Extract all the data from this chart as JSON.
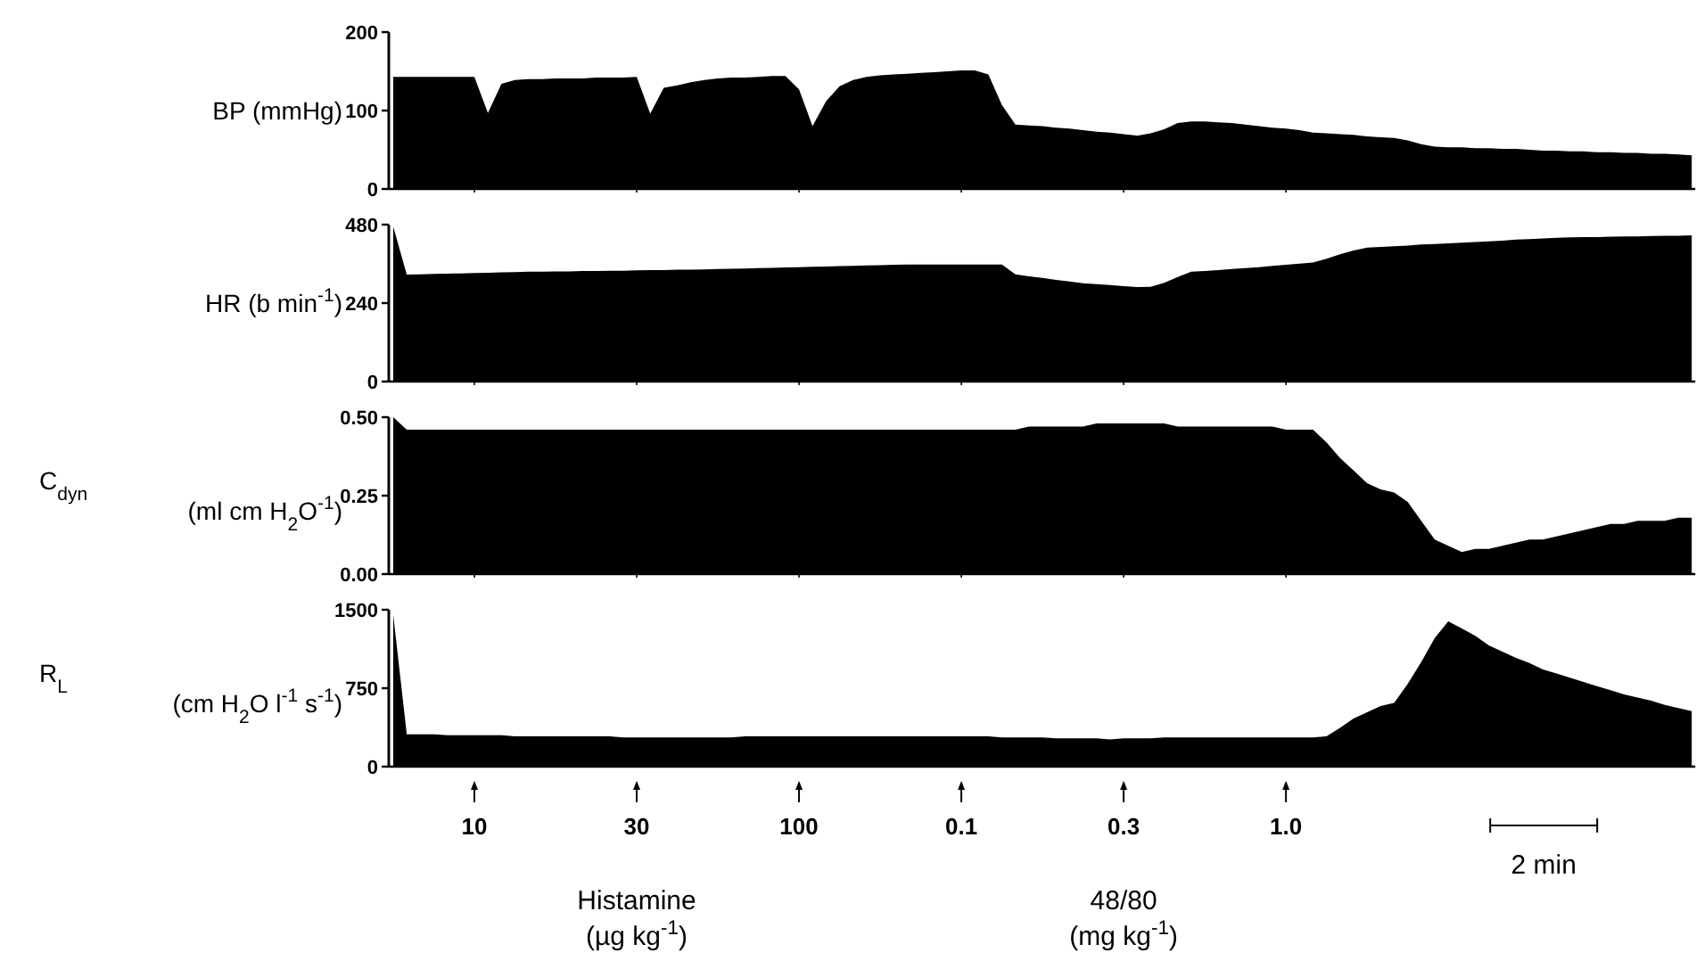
{
  "chart_data": [
    {
      "type": "area",
      "ylabel": "BP (mmHg)",
      "color": "#000000",
      "ylim": [
        0,
        200
      ],
      "yticks": [
        0,
        100,
        200
      ],
      "tick_labels": "y",
      "categories": [
        null,
        null,
        null,
        null,
        null,
        null,
        "10",
        null,
        null,
        null,
        null,
        null,
        null,
        null,
        null,
        null,
        null,
        null,
        "30",
        null,
        null,
        null,
        null,
        null,
        null,
        null,
        null,
        null,
        null,
        null,
        "100",
        null,
        null,
        null,
        null,
        null,
        null,
        null,
        null,
        null,
        null,
        null,
        "0.1",
        null,
        null,
        null,
        null,
        null,
        null,
        null,
        null,
        null,
        null,
        null,
        "0.3",
        null,
        null,
        null,
        null,
        null,
        null,
        null,
        null,
        null,
        null,
        null,
        "1.0",
        null,
        null,
        null,
        null,
        null,
        null,
        null,
        null,
        null,
        null,
        null,
        null,
        null,
        null,
        null,
        null,
        null,
        null,
        null,
        null,
        null,
        null,
        null,
        null,
        null,
        null,
        null,
        null,
        null,
        null
      ],
      "values": [
        143,
        143,
        143,
        143,
        143,
        143,
        143,
        97,
        134,
        139,
        140,
        140,
        141,
        141,
        141,
        142,
        142,
        142,
        143,
        96,
        129,
        132,
        136,
        139,
        141,
        142,
        142,
        143,
        144,
        144,
        127,
        80,
        112,
        131,
        139,
        143,
        145,
        146,
        147,
        148,
        149,
        150,
        151,
        151,
        146,
        107,
        82,
        81,
        80,
        78,
        77,
        75,
        73,
        72,
        70,
        68,
        71,
        76,
        84,
        86,
        86,
        85,
        84,
        82,
        80,
        78,
        77,
        75,
        72,
        71,
        70,
        69,
        67,
        66,
        65,
        62,
        57,
        54,
        53,
        53,
        52,
        52,
        51,
        51,
        50,
        49,
        49,
        48,
        48,
        47,
        47,
        46,
        46,
        45,
        45,
        44,
        43
      ]
    },
    {
      "type": "area",
      "ylabel": "HR (b min$^{-1}$)",
      "color": "#000000",
      "ylim": [
        0,
        480
      ],
      "yticks": [
        0,
        240,
        480
      ],
      "tick_labels": "y",
      "categories": [
        null,
        null,
        null,
        null,
        null,
        null,
        "10",
        null,
        null,
        null,
        null,
        null,
        null,
        null,
        null,
        null,
        null,
        null,
        "30",
        null,
        null,
        null,
        null,
        null,
        null,
        null,
        null,
        null,
        null,
        null,
        "100",
        null,
        null,
        null,
        null,
        null,
        null,
        null,
        null,
        null,
        null,
        null,
        "0.1",
        null,
        null,
        null,
        null,
        null,
        null,
        null,
        null,
        null,
        null,
        null,
        "0.3",
        null,
        null,
        null,
        null,
        null,
        null,
        null,
        null,
        null,
        null,
        null,
        "1.0",
        null,
        null,
        null,
        null,
        null,
        null,
        null,
        null,
        null,
        null,
        null,
        null,
        null,
        null,
        null,
        null,
        null,
        null,
        null,
        null,
        null,
        null,
        null,
        null,
        null,
        null,
        null,
        null,
        null,
        null
      ],
      "values": [
        474,
        327,
        328,
        329,
        330,
        331,
        332,
        333,
        334,
        335,
        336,
        336,
        337,
        337,
        338,
        338,
        339,
        339,
        340,
        341,
        341,
        342,
        342,
        343,
        344,
        345,
        346,
        347,
        348,
        349,
        350,
        351,
        352,
        353,
        354,
        355,
        356,
        357,
        358,
        358,
        358,
        358,
        358,
        358,
        358,
        358,
        328,
        322,
        317,
        311,
        306,
        301,
        298,
        295,
        292,
        289,
        290,
        302,
        320,
        336,
        338,
        341,
        344,
        347,
        350,
        354,
        357,
        361,
        364,
        376,
        389,
        401,
        410,
        412,
        414,
        416,
        419,
        421,
        423,
        425,
        427,
        429,
        431,
        434,
        436,
        438,
        440,
        441,
        442,
        442,
        443,
        444,
        444,
        445,
        446,
        446,
        447
      ]
    },
    {
      "type": "area",
      "ylabel": "C$_{dyn}$ (ml cm H$_{2}$O$^{-1}$)",
      "color": "#000000",
      "ylim": [
        0,
        0.5
      ],
      "yticks": [
        {
          "value": 0,
          "label": "0.00"
        },
        {
          "value": 0.25,
          "label": "0.25"
        },
        {
          "value": 0.5,
          "label": "0.50"
        }
      ],
      "tick_labels": "y",
      "categories": [
        null,
        null,
        null,
        null,
        null,
        null,
        "10",
        null,
        null,
        null,
        null,
        null,
        null,
        null,
        null,
        null,
        null,
        null,
        "30",
        null,
        null,
        null,
        null,
        null,
        null,
        null,
        null,
        null,
        null,
        null,
        "100",
        null,
        null,
        null,
        null,
        null,
        null,
        null,
        null,
        null,
        null,
        null,
        "0.1",
        null,
        null,
        null,
        null,
        null,
        null,
        null,
        null,
        null,
        null,
        null,
        "0.3",
        null,
        null,
        null,
        null,
        null,
        null,
        null,
        null,
        null,
        null,
        null,
        "1.0",
        null,
        null,
        null,
        null,
        null,
        null,
        null,
        null,
        null,
        null,
        null,
        null,
        null,
        null,
        null,
        null,
        null,
        null,
        null,
        null,
        null,
        null,
        null,
        null,
        null,
        null,
        null,
        null,
        null,
        null
      ],
      "values": [
        0.5,
        0.46,
        0.46,
        0.46,
        0.46,
        0.46,
        0.46,
        0.46,
        0.46,
        0.46,
        0.46,
        0.46,
        0.46,
        0.46,
        0.46,
        0.46,
        0.46,
        0.46,
        0.46,
        0.46,
        0.46,
        0.46,
        0.46,
        0.46,
        0.46,
        0.46,
        0.46,
        0.46,
        0.46,
        0.46,
        0.46,
        0.46,
        0.46,
        0.46,
        0.46,
        0.46,
        0.46,
        0.46,
        0.46,
        0.46,
        0.46,
        0.46,
        0.46,
        0.46,
        0.46,
        0.46,
        0.46,
        0.47,
        0.47,
        0.47,
        0.47,
        0.47,
        0.48,
        0.48,
        0.48,
        0.48,
        0.48,
        0.48,
        0.47,
        0.47,
        0.47,
        0.47,
        0.47,
        0.47,
        0.47,
        0.47,
        0.46,
        0.46,
        0.46,
        0.42,
        0.37,
        0.33,
        0.29,
        0.27,
        0.26,
        0.23,
        0.17,
        0.11,
        0.09,
        0.07,
        0.08,
        0.08,
        0.09,
        0.1,
        0.11,
        0.11,
        0.12,
        0.13,
        0.14,
        0.15,
        0.16,
        0.16,
        0.17,
        0.17,
        0.17,
        0.18,
        0.18
      ]
    },
    {
      "type": "area",
      "ylabel": "R$_{L}$ (cm H$_{2}$O l$^{-1}$ s$^{-1}$)",
      "color": "#000000",
      "ylim": [
        0,
        1500
      ],
      "yticks": [
        0,
        750,
        1500
      ],
      "categories": [
        null,
        null,
        null,
        null,
        null,
        null,
        "10",
        null,
        null,
        null,
        null,
        null,
        null,
        null,
        null,
        null,
        null,
        null,
        "30",
        null,
        null,
        null,
        null,
        null,
        null,
        null,
        null,
        null,
        null,
        null,
        "100",
        null,
        null,
        null,
        null,
        null,
        null,
        null,
        null,
        null,
        null,
        null,
        "0.1",
        null,
        null,
        null,
        null,
        null,
        null,
        null,
        null,
        null,
        null,
        null,
        "0.3",
        null,
        null,
        null,
        null,
        null,
        null,
        null,
        null,
        null,
        null,
        null,
        "1.0",
        null,
        null,
        null,
        null,
        null,
        null,
        null,
        null,
        null,
        null,
        null,
        null,
        null,
        null,
        null,
        null,
        null,
        null,
        null,
        null,
        null,
        null,
        null,
        null,
        null,
        null,
        null,
        null,
        null,
        null
      ],
      "values": [
        1450,
        310,
        310,
        310,
        300,
        300,
        300,
        300,
        300,
        290,
        290,
        290,
        290,
        290,
        290,
        290,
        290,
        280,
        280,
        280,
        280,
        280,
        280,
        280,
        280,
        280,
        290,
        290,
        290,
        290,
        290,
        290,
        290,
        290,
        290,
        290,
        290,
        290,
        290,
        290,
        290,
        290,
        290,
        290,
        290,
        280,
        280,
        280,
        280,
        270,
        270,
        270,
        270,
        260,
        270,
        270,
        270,
        280,
        280,
        280,
        280,
        280,
        280,
        280,
        280,
        280,
        280,
        280,
        280,
        290,
        370,
        460,
        520,
        580,
        610,
        790,
        1000,
        1230,
        1390,
        1320,
        1250,
        1160,
        1100,
        1040,
        990,
        930,
        890,
        850,
        810,
        770,
        730,
        690,
        660,
        630,
        590,
        560,
        530
      ],
      "annotations": [
        "Histamine (µg kg$^{-1}$)",
        "48/80 (mg kg$^{-1}$)",
        "2 min"
      ]
    }
  ]
}
